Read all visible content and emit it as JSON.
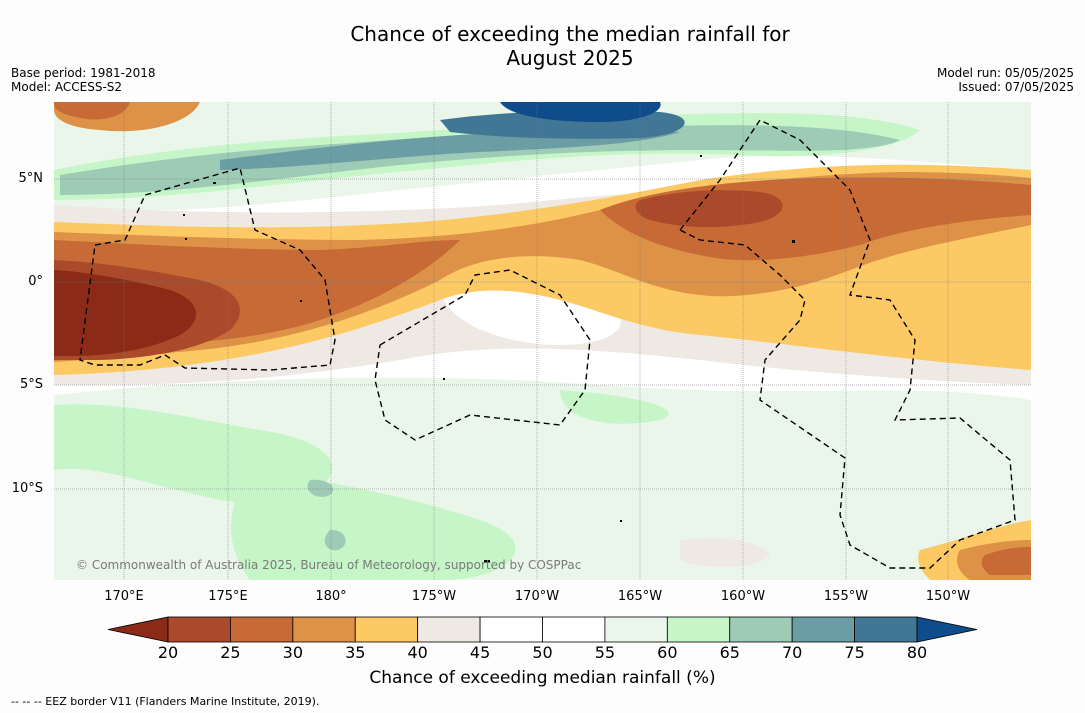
{
  "title_line1": "Chance of exceeding the median rainfall for",
  "title_line2": "August 2025",
  "base_period": "Base period: 1981-2018",
  "model": "Model: ACCESS-S2",
  "model_run": "Model run: 05/05/2025",
  "issued": "Issued: 07/05/2025",
  "lat_labels": [
    "5°N",
    "0°",
    "5°S",
    "10°S"
  ],
  "lon_labels": [
    "170°E",
    "175°E",
    "180°",
    "175°W",
    "170°W",
    "165°W",
    "160°W",
    "155°W",
    "150°W"
  ],
  "copyright": "© Commonwealth of Australia 2025, Bureau of Meteorology, supported by COSPPac",
  "colorbar": {
    "ticks": [
      "20",
      "25",
      "30",
      "35",
      "40",
      "45",
      "50",
      "55",
      "60",
      "65",
      "70",
      "75",
      "80"
    ],
    "colors": [
      "#8b2a16",
      "#aa4a2a",
      "#c86a36",
      "#dd9247",
      "#fcc965",
      "#efe9e3",
      "#ffffff",
      "#ffffff",
      "#eaf6ea",
      "#c6f6c8",
      "#9ecbb5",
      "#6b9ea4",
      "#417795",
      "#0f4c8c"
    ],
    "label": "Chance of exceeding median rainfall (%)"
  },
  "eez_note": "--  --  -- EEZ border V11 (Flanders Marine Institute, 2019)."
}
